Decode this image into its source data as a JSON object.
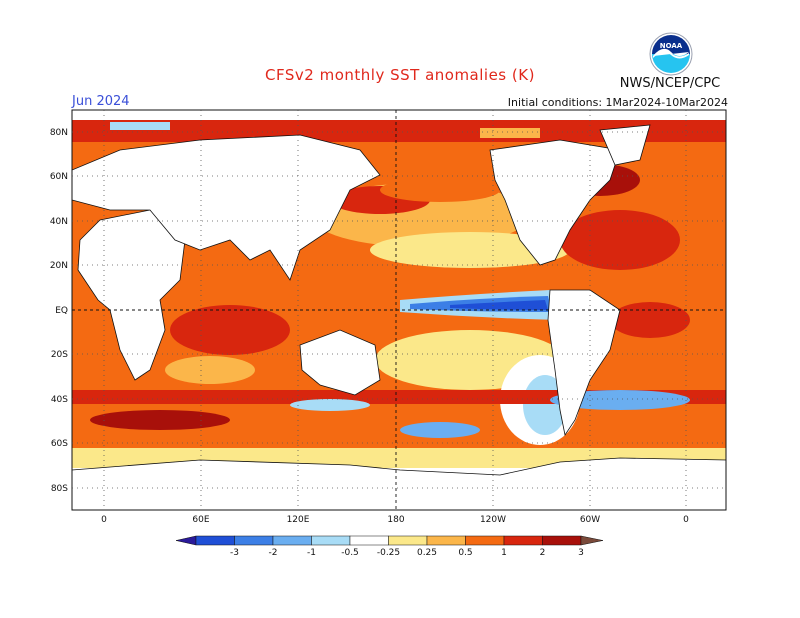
{
  "header": {
    "title": "CFSv2 monthly SST anomalies (K)",
    "month": "Jun 2024",
    "initial_conditions": "Initial conditions: 1Mar2024-10Mar2024",
    "agency": "NWS/NCEP/CPC",
    "logo_text": "NOAA"
  },
  "map": {
    "lat_labels": [
      "80N",
      "60N",
      "40N",
      "20N",
      "EQ",
      "20S",
      "40S",
      "60S",
      "80S"
    ],
    "lon_labels": [
      "0",
      "60E",
      "120E",
      "180",
      "120W",
      "60W",
      "0"
    ],
    "colors": {
      "neg3": "#2a1a9a",
      "neg2": "#1f4fd6",
      "neg1": "#3c7fe6",
      "neg05": "#6aaef0",
      "neg025": "#a8dcf6",
      "neutral": "#ffffff",
      "pos025": "#fbe88a",
      "pos05": "#fbb64a",
      "pos1": "#f46a12",
      "pos2": "#d8260e",
      "pos3": "#a8100a",
      "pos4": "#7a4a3a"
    }
  },
  "colorbar": {
    "labels": [
      "-3",
      "-2",
      "-1",
      "-0.5",
      "-0.25",
      "0.25",
      "0.5",
      "1",
      "2",
      "3"
    ],
    "colors": [
      "#2a1a9a",
      "#1f4fd6",
      "#3c7fe6",
      "#6aaef0",
      "#a8dcf6",
      "#ffffff",
      "#fbe88a",
      "#fbb64a",
      "#f46a12",
      "#d8260e",
      "#a8100a",
      "#7a4a3a"
    ]
  }
}
